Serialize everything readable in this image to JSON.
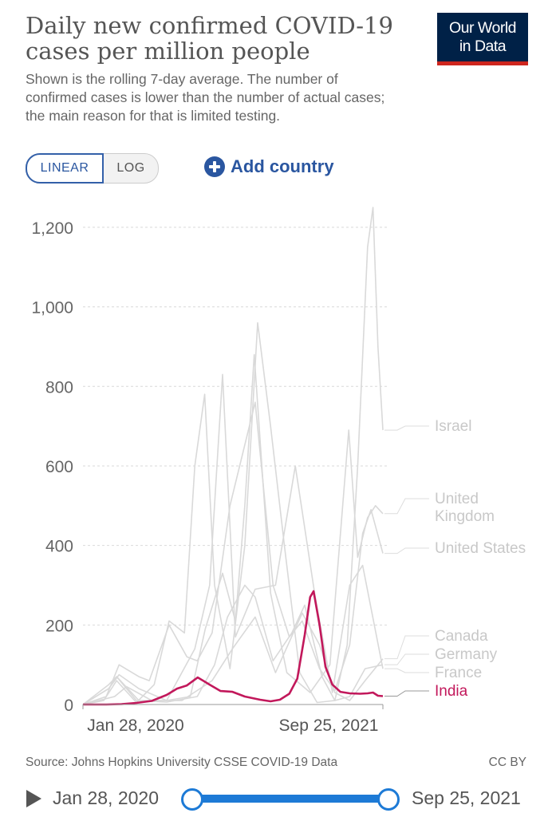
{
  "header": {
    "title": "Daily new confirmed COVID-19 cases per million people",
    "subtitle": "Shown is the rolling 7-day average. The number of confirmed cases is lower than the number of actual cases; the main reason for that is limited testing.",
    "logo_line1": "Our World",
    "logo_line2": "in Data"
  },
  "controls": {
    "linear_label": "LINEAR",
    "log_label": "LOG",
    "add_country_label": "Add country",
    "selected_scale": "LINEAR"
  },
  "footer": {
    "source": "Source: Johns Hopkins University CSSE COVID-19 Data",
    "license": "CC BY"
  },
  "timeline": {
    "start_date": "Jan 28, 2020",
    "end_date": "Sep 25, 2021"
  },
  "colors": {
    "highlight": "#c2185b",
    "background_series": "#d9d9d9",
    "label_grey": "#c8c8c8",
    "accent_blue": "#2a56a0",
    "slider_blue": "#1d7ad6"
  },
  "chart_data": {
    "type": "line",
    "ylim": [
      0,
      1250
    ],
    "yticks": [
      0,
      200,
      400,
      600,
      800,
      1000,
      1200
    ],
    "ytick_labels": [
      "0",
      "200",
      "400",
      "600",
      "800",
      "1,000",
      "1,200"
    ],
    "xlim": [
      "2020-01-28",
      "2021-09-25"
    ],
    "xtick_labels": [
      "Jan 28, 2020",
      "Sep 25, 2021"
    ],
    "grid": "horizontal-dashed",
    "series": [
      {
        "name": "Israel",
        "color": "#d6d6d6",
        "highlight": false,
        "x": [
          "2020-01-28",
          "2020-03-10",
          "2020-04-05",
          "2020-05-15",
          "2020-06-20",
          "2020-07-20",
          "2020-08-20",
          "2020-09-10",
          "2020-09-30",
          "2020-10-20",
          "2020-11-20",
          "2020-12-20",
          "2021-01-15",
          "2021-02-10",
          "2021-03-10",
          "2021-04-10",
          "2021-05-15",
          "2021-06-20",
          "2021-07-15",
          "2021-08-05",
          "2021-08-25",
          "2021-09-05",
          "2021-09-15",
          "2021-09-25"
        ],
        "values": [
          0,
          10,
          60,
          5,
          50,
          210,
          180,
          600,
          780,
          300,
          90,
          400,
          960,
          700,
          400,
          80,
          5,
          10,
          150,
          600,
          1150,
          1250,
          900,
          690
        ]
      },
      {
        "name": "United Kingdom",
        "color": "#d6d6d6",
        "highlight": false,
        "x": [
          "2020-01-28",
          "2020-03-20",
          "2020-04-10",
          "2020-05-20",
          "2020-07-15",
          "2020-09-01",
          "2020-10-01",
          "2020-11-05",
          "2020-12-01",
          "2020-12-20",
          "2021-01-08",
          "2021-02-10",
          "2021-03-15",
          "2021-05-01",
          "2021-06-10",
          "2021-07-18",
          "2021-08-05",
          "2021-08-25",
          "2021-09-10",
          "2021-09-25"
        ],
        "values": [
          0,
          40,
          75,
          40,
          10,
          20,
          190,
          330,
          210,
          500,
          880,
          280,
          80,
          30,
          100,
          690,
          370,
          470,
          500,
          480
        ]
      },
      {
        "name": "United States",
        "color": "#d6d6d6",
        "highlight": false,
        "x": [
          "2020-01-28",
          "2020-03-15",
          "2020-04-10",
          "2020-05-20",
          "2020-06-10",
          "2020-07-20",
          "2020-08-25",
          "2020-09-15",
          "2020-10-15",
          "2020-11-20",
          "2021-01-10",
          "2021-02-15",
          "2021-03-20",
          "2021-04-15",
          "2021-05-20",
          "2021-06-20",
          "2021-07-20",
          "2021-08-15",
          "2021-09-01",
          "2021-09-25"
        ],
        "values": [
          0,
          20,
          100,
          70,
          60,
          200,
          120,
          110,
          180,
          500,
          760,
          300,
          170,
          210,
          90,
          35,
          150,
          430,
          490,
          380
        ]
      },
      {
        "name": "Canada",
        "color": "#d6d6d6",
        "highlight": false,
        "x": [
          "2020-01-28",
          "2020-04-01",
          "2020-04-25",
          "2020-06-15",
          "2020-08-15",
          "2020-10-15",
          "2020-11-25",
          "2021-01-10",
          "2021-02-20",
          "2021-04-15",
          "2021-05-20",
          "2021-06-20",
          "2021-07-20",
          "2021-08-20",
          "2021-09-25"
        ],
        "values": [
          0,
          20,
          45,
          10,
          10,
          60,
          140,
          220,
          80,
          230,
          150,
          30,
          10,
          60,
          115
        ]
      },
      {
        "name": "Germany",
        "color": "#d6d6d6",
        "highlight": false,
        "x": [
          "2020-01-28",
          "2020-03-20",
          "2020-04-05",
          "2020-05-15",
          "2020-07-15",
          "2020-09-15",
          "2020-10-20",
          "2020-11-15",
          "2020-12-20",
          "2021-01-10",
          "2021-02-15",
          "2021-03-25",
          "2021-04-20",
          "2021-05-25",
          "2021-06-20",
          "2021-07-20",
          "2021-08-20",
          "2021-09-25"
        ],
        "values": [
          0,
          40,
          70,
          10,
          6,
          20,
          100,
          220,
          300,
          270,
          110,
          180,
          250,
          70,
          10,
          20,
          90,
          100
        ]
      },
      {
        "name": "France",
        "color": "#d6d6d6",
        "highlight": false,
        "x": [
          "2020-01-28",
          "2020-03-20",
          "2020-04-05",
          "2020-05-20",
          "2020-07-15",
          "2020-09-10",
          "2020-10-10",
          "2020-11-05",
          "2020-12-01",
          "2021-01-10",
          "2021-02-20",
          "2021-04-01",
          "2021-05-10",
          "2021-06-15",
          "2021-07-20",
          "2021-08-15",
          "2021-09-25"
        ],
        "values": [
          0,
          50,
          70,
          10,
          10,
          140,
          300,
          830,
          170,
          290,
          300,
          600,
          280,
          30,
          300,
          350,
          90
        ]
      },
      {
        "name": "India",
        "color": "#c2185b",
        "highlight": true,
        "x": [
          "2020-01-28",
          "2020-03-15",
          "2020-04-15",
          "2020-05-15",
          "2020-06-15",
          "2020-07-15",
          "2020-08-05",
          "2020-08-25",
          "2020-09-16",
          "2020-10-10",
          "2020-11-01",
          "2020-11-25",
          "2020-12-20",
          "2021-01-20",
          "2021-02-10",
          "2021-03-01",
          "2021-03-20",
          "2021-04-05",
          "2021-04-20",
          "2021-05-01",
          "2021-05-08",
          "2021-05-20",
          "2021-06-01",
          "2021-06-15",
          "2021-07-01",
          "2021-07-20",
          "2021-08-10",
          "2021-08-25",
          "2021-09-05",
          "2021-09-15",
          "2021-09-25"
        ],
        "values": [
          0,
          0,
          1,
          4,
          9,
          24,
          40,
          48,
          68,
          50,
          34,
          32,
          20,
          12,
          8,
          12,
          27,
          65,
          175,
          270,
          285,
          200,
          95,
          50,
          32,
          28,
          27,
          28,
          30,
          22,
          21
        ]
      }
    ]
  }
}
